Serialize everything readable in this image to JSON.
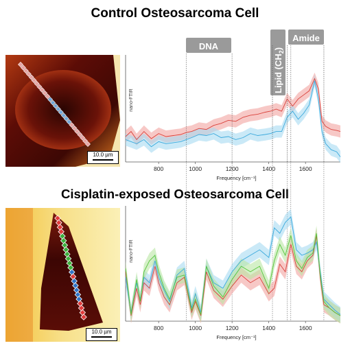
{
  "title_top": "Control Osteosarcoma Cell",
  "title_bottom": "Cisplatin-exposed Osteosarcoma Cell",
  "scale_label": "10.0 µm",
  "region_labels": {
    "dna": "DNA",
    "lipid_main": "Lipid (CH",
    "lipid_sub": "2",
    "lipid_close": ")",
    "amide": "Amide"
  },
  "colors": {
    "red": "#d9413b",
    "red_band": "#f2a3a0",
    "blue": "#3aa9dc",
    "blue_band": "#a6daf2",
    "green": "#55c43a",
    "green_band": "#b9e6a3",
    "region_box": "#9a9a9a"
  },
  "chart_data": [
    {
      "type": "line",
      "title": "Control Osteosarcoma Cell",
      "xlabel": "Frequency [cm⁻¹]",
      "ylabel": "nano-FTIR",
      "xlim": [
        620,
        1790
      ],
      "ylim": [
        0,
        1
      ],
      "xticks": [
        800,
        1000,
        1200,
        1400,
        1600
      ],
      "regions": [
        {
          "label": "DNA",
          "x": [
            950,
            1200
          ]
        },
        {
          "label": "Lipid (CH2)",
          "x": [
            1420,
            1500
          ]
        },
        {
          "label": "Amide",
          "x": [
            1520,
            1700
          ]
        }
      ],
      "series": [
        {
          "color": "red",
          "x": [
            620,
            650,
            680,
            720,
            760,
            800,
            840,
            880,
            920,
            950,
            980,
            1020,
            1060,
            1100,
            1140,
            1180,
            1220,
            1260,
            1300,
            1340,
            1380,
            1410,
            1440,
            1470,
            1500,
            1530,
            1560,
            1590,
            1620,
            1650,
            1670,
            1690,
            1710,
            1740,
            1770,
            1790
          ],
          "y": [
            0.25,
            0.3,
            0.22,
            0.3,
            0.23,
            0.28,
            0.25,
            0.26,
            0.27,
            0.29,
            0.3,
            0.33,
            0.32,
            0.36,
            0.38,
            0.41,
            0.4,
            0.44,
            0.46,
            0.47,
            0.49,
            0.5,
            0.52,
            0.5,
            0.62,
            0.55,
            0.62,
            0.66,
            0.7,
            0.82,
            0.72,
            0.4,
            0.35,
            0.32,
            0.31,
            0.3
          ]
        },
        {
          "color": "blue",
          "x": [
            620,
            650,
            680,
            720,
            760,
            800,
            840,
            880,
            920,
            950,
            980,
            1020,
            1060,
            1100,
            1140,
            1180,
            1220,
            1260,
            1300,
            1340,
            1380,
            1410,
            1440,
            1470,
            1500,
            1530,
            1560,
            1590,
            1620,
            1650,
            1670,
            1690,
            1710,
            1740,
            1770,
            1790
          ],
          "y": [
            0.22,
            0.2,
            0.18,
            0.22,
            0.15,
            0.2,
            0.18,
            0.19,
            0.2,
            0.22,
            0.24,
            0.27,
            0.26,
            0.28,
            0.24,
            0.25,
            0.22,
            0.24,
            0.28,
            0.26,
            0.27,
            0.28,
            0.3,
            0.3,
            0.44,
            0.5,
            0.42,
            0.48,
            0.56,
            0.8,
            0.62,
            0.3,
            0.18,
            0.12,
            0.1,
            0.05
          ]
        }
      ]
    },
    {
      "type": "line",
      "title": "Cisplatin-exposed Osteosarcoma Cell",
      "xlabel": "Frequency [cm⁻¹]",
      "ylabel": "nano-FTIR",
      "xlim": [
        620,
        1790
      ],
      "ylim": [
        0,
        1
      ],
      "xticks": [
        800,
        1000,
        1200,
        1400,
        1600
      ],
      "regions": [
        {
          "label": "DNA",
          "x": [
            950,
            1200
          ]
        },
        {
          "label": "Lipid (CH2)",
          "x": [
            1420,
            1500
          ]
        },
        {
          "label": "Amide",
          "x": [
            1520,
            1700
          ]
        }
      ],
      "series": [
        {
          "color": "red",
          "x": [
            620,
            650,
            680,
            700,
            720,
            750,
            780,
            800,
            830,
            860,
            900,
            940,
            980,
            1000,
            1030,
            1060,
            1100,
            1150,
            1200,
            1250,
            1300,
            1350,
            1400,
            1430,
            1460,
            1490,
            1520,
            1550,
            1580,
            1610,
            1640,
            1660,
            1680,
            1700,
            1730,
            1760,
            1790
          ],
          "y": [
            0.45,
            0.05,
            0.3,
            0.15,
            0.35,
            0.3,
            0.5,
            0.35,
            0.22,
            0.15,
            0.35,
            0.4,
            0.08,
            0.18,
            0.05,
            0.45,
            0.28,
            0.2,
            0.32,
            0.42,
            0.35,
            0.4,
            0.25,
            0.3,
            0.52,
            0.45,
            0.7,
            0.5,
            0.45,
            0.55,
            0.6,
            0.78,
            0.4,
            0.15,
            0.12,
            0.08,
            0.05
          ]
        },
        {
          "color": "blue",
          "x": [
            620,
            650,
            680,
            700,
            720,
            750,
            780,
            800,
            830,
            860,
            900,
            940,
            980,
            1000,
            1030,
            1060,
            1100,
            1150,
            1200,
            1250,
            1300,
            1350,
            1400,
            1430,
            1460,
            1490,
            1520,
            1550,
            1580,
            1610,
            1640,
            1660,
            1680,
            1700,
            1730,
            1760,
            1790
          ],
          "y": [
            0.4,
            0.08,
            0.35,
            0.2,
            0.4,
            0.35,
            0.55,
            0.4,
            0.28,
            0.18,
            0.42,
            0.48,
            0.12,
            0.25,
            0.08,
            0.5,
            0.35,
            0.3,
            0.45,
            0.55,
            0.6,
            0.65,
            0.58,
            0.85,
            0.8,
            0.9,
            0.95,
            0.65,
            0.6,
            0.62,
            0.65,
            0.72,
            0.45,
            0.2,
            0.15,
            0.1,
            0.06
          ]
        },
        {
          "color": "green",
          "x": [
            620,
            650,
            680,
            700,
            720,
            750,
            780,
            800,
            830,
            860,
            900,
            940,
            980,
            1000,
            1030,
            1060,
            1100,
            1150,
            1200,
            1250,
            1300,
            1350,
            1400,
            1430,
            1460,
            1490,
            1520,
            1550,
            1580,
            1610,
            1640,
            1660,
            1680,
            1700,
            1730,
            1760,
            1790
          ],
          "y": [
            0.48,
            0.06,
            0.38,
            0.18,
            0.45,
            0.55,
            0.6,
            0.45,
            0.3,
            0.2,
            0.4,
            0.42,
            0.1,
            0.2,
            0.06,
            0.5,
            0.32,
            0.22,
            0.38,
            0.5,
            0.45,
            0.5,
            0.3,
            0.55,
            0.7,
            0.6,
            0.78,
            0.55,
            0.48,
            0.58,
            0.62,
            0.8,
            0.42,
            0.18,
            0.12,
            0.08,
            0.05
          ]
        }
      ]
    }
  ]
}
